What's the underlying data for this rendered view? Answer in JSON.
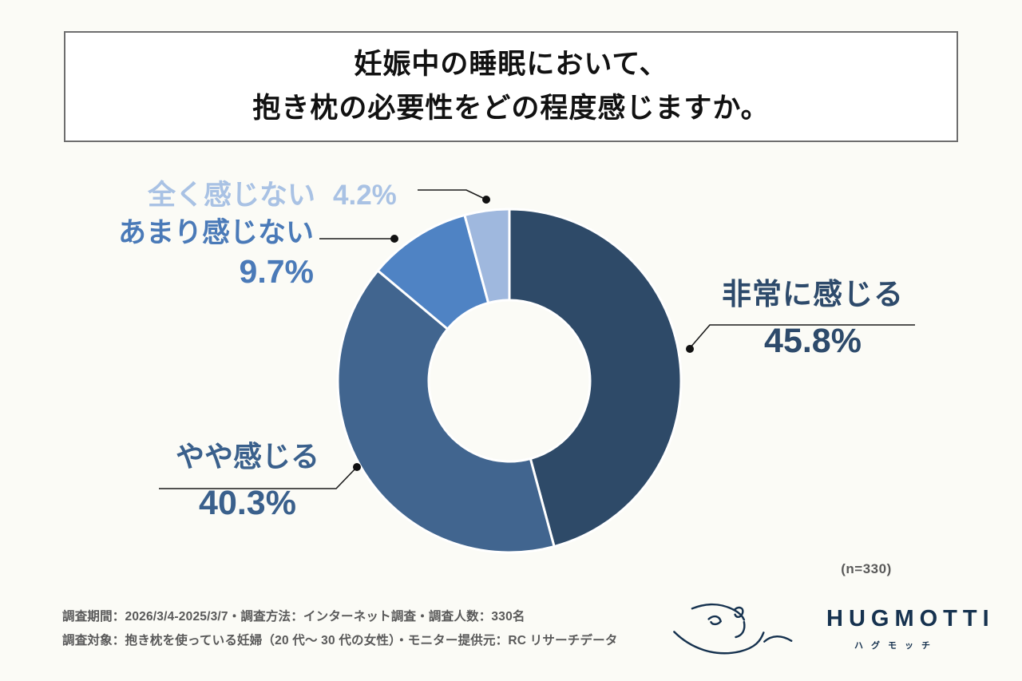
{
  "page": {
    "background": "#FBFBF6"
  },
  "title": {
    "line1": "妊娠中の睡眠において、",
    "line2": "抱き枕の必要性をどの程度感じますか。"
  },
  "chart_data": {
    "type": "pie",
    "subtype": "donut",
    "title": "妊娠中の睡眠において、抱き枕の必要性をどの程度感じますか。",
    "start_angle": "12-oclock",
    "direction": "clockwise",
    "inner_radius_ratio": 0.47,
    "sample_label": "(n=330)",
    "sample_size": 330,
    "segments": [
      {
        "label": "非常に感じる",
        "value": 45.8,
        "display": "45.8%",
        "color": "#2E4A68"
      },
      {
        "label": "やや感じる",
        "value": 40.3,
        "display": "40.3%",
        "color": "#41658F"
      },
      {
        "label": "あまり感じない",
        "value": 9.7,
        "display": "9.7%",
        "color": "#4F83C4"
      },
      {
        "label": "全く感じない",
        "value": 4.2,
        "display": "4.2%",
        "color": "#9FB8DE"
      }
    ]
  },
  "callouts": {
    "very": {
      "label": "非常に感じる",
      "pct": "45.8%",
      "color": "#2D4A6B"
    },
    "somewhat": {
      "label": "やや感じる",
      "pct": "40.3%",
      "color": "#3A608C"
    },
    "not_much": {
      "label": "あまり感じない",
      "pct": "9.7%",
      "color": "#4A7AB8"
    },
    "not_at_all": {
      "label": "全く感じない",
      "pct": "4.2%",
      "color": "#A9C2E4"
    }
  },
  "footer": {
    "line1": "調査期間：2026/3/4-2025/3/7・調査方法：インターネット調査・調査人数：330名",
    "line2": "調査対象：抱き枕を使っている妊婦（20 代～ 30 代の女性）・モニター提供元：RC リサーチデータ"
  },
  "logo": {
    "wordmark": "HUGMOTTI",
    "kana": "ハグモッチ",
    "color": "#16324F"
  }
}
